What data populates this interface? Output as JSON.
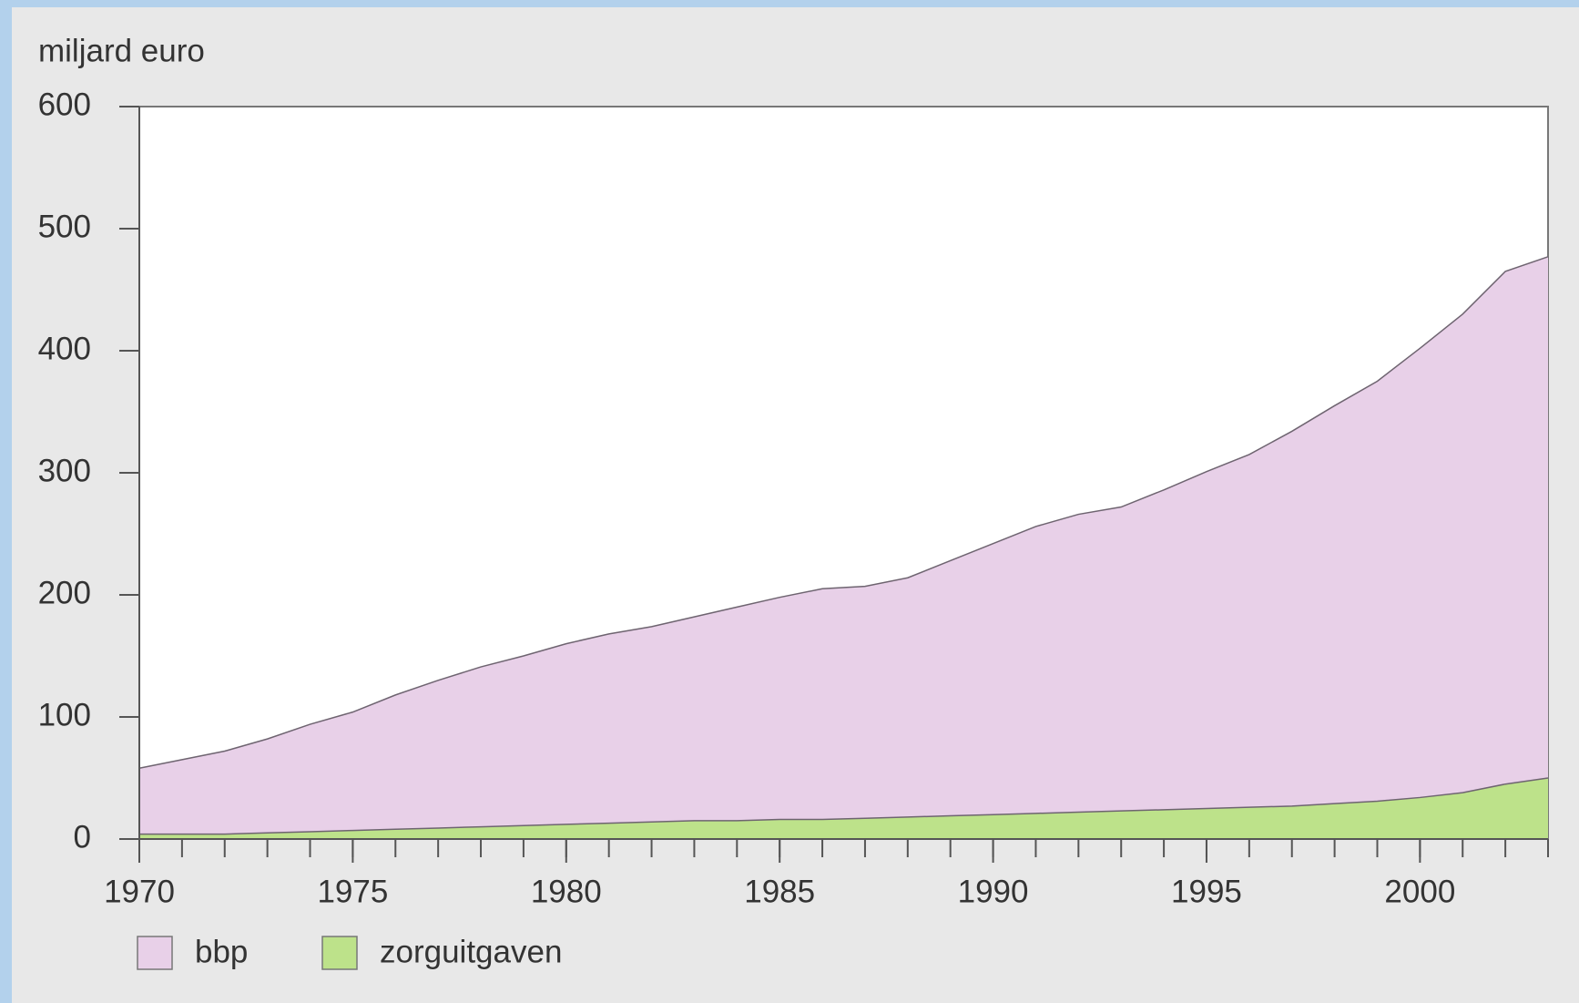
{
  "chart_data": {
    "type": "area",
    "ylabel": "miljard euro",
    "x": [
      1970,
      1971,
      1972,
      1973,
      1974,
      1975,
      1976,
      1977,
      1978,
      1979,
      1980,
      1981,
      1982,
      1983,
      1984,
      1985,
      1986,
      1987,
      1988,
      1989,
      1990,
      1991,
      1992,
      1993,
      1994,
      1995,
      1996,
      1997,
      1998,
      1999,
      2000,
      2001,
      2002,
      2003
    ],
    "series": [
      {
        "name": "bbp",
        "color": "#e8d0e8",
        "values": [
          58,
          65,
          72,
          82,
          94,
          104,
          118,
          130,
          141,
          150,
          160,
          168,
          174,
          182,
          190,
          198,
          205,
          207,
          214,
          228,
          242,
          256,
          266,
          272,
          286,
          301,
          315,
          334,
          355,
          375,
          402,
          430,
          465,
          477
        ]
      },
      {
        "name": "zorguitgaven",
        "color": "#bde28a",
        "values": [
          4,
          4,
          4,
          5,
          6,
          7,
          8,
          9,
          10,
          11,
          12,
          13,
          14,
          15,
          15,
          16,
          16,
          17,
          18,
          19,
          20,
          21,
          22,
          23,
          24,
          25,
          26,
          27,
          29,
          31,
          34,
          38,
          45,
          50
        ]
      }
    ],
    "xlim": [
      1970,
      2003
    ],
    "xticks": [
      1970,
      1975,
      1980,
      1985,
      1990,
      1995,
      2000
    ],
    "ylim": [
      0,
      600
    ],
    "yticks": [
      0,
      100,
      200,
      300,
      400,
      500,
      600
    ]
  }
}
